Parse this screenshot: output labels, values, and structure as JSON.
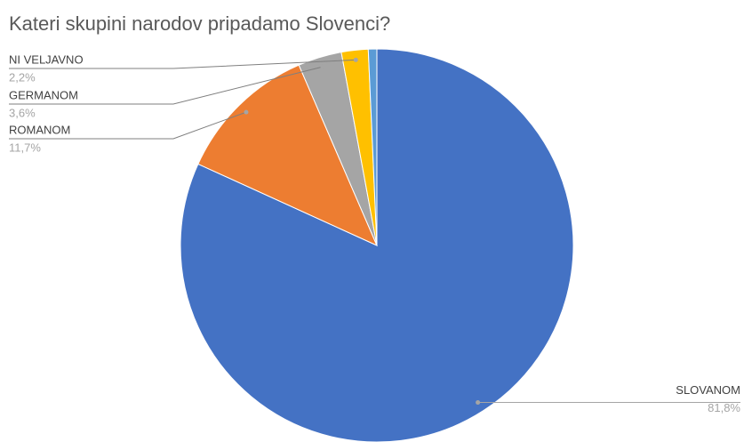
{
  "chart_data": {
    "type": "pie",
    "title": "Kateri skupini narodov pripadamo Slovenci?",
    "categories": [
      "SLOVANOM",
      "ROMANOM",
      "GERMANOM",
      "NI VELJAVNO",
      null
    ],
    "values": [
      81.8,
      11.7,
      3.6,
      2.2,
      0.7
    ],
    "value_labels": [
      "81,8%",
      "11,7%",
      "3,6%",
      "2,2%",
      null
    ],
    "colors": [
      "#4472c4",
      "#ed7d31",
      "#a5a5a5",
      "#ffc000",
      "#5b9bd5"
    ]
  }
}
